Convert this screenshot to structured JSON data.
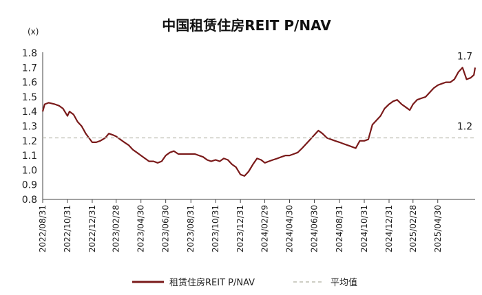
{
  "chart_data": {
    "type": "line",
    "title": "中国租赁住房REIT P/NAV",
    "unit_label": "(x)",
    "xlabel": "",
    "ylabel": "",
    "ylim": [
      0.8,
      1.8
    ],
    "yticks": [
      0.8,
      0.9,
      1.0,
      1.1,
      1.2,
      1.3,
      1.4,
      1.5,
      1.6,
      1.7,
      1.8
    ],
    "xlim": [
      "2022-08-31",
      "2025-07-31"
    ],
    "xtick_labels": [
      "2022/08/31",
      "2022/10/31",
      "2022/12/31",
      "2023/02/28",
      "2023/04/30",
      "2023/06/30",
      "2023/08/31",
      "2023/10/31",
      "2023/12/31",
      "2024/02/29",
      "2024/04/30",
      "2024/06/30",
      "2024/08/31",
      "2024/10/31",
      "2024/12/31",
      "2025/02/28",
      "2025/04/30"
    ],
    "grid": false,
    "legend_position": "bottom",
    "series": [
      {
        "name": "租赁住房REIT P/NAV",
        "style": "solid",
        "color": "#7a1a1a",
        "x": [
          "2022-08-31",
          "2022-09-05",
          "2022-09-15",
          "2022-09-30",
          "2022-10-10",
          "2022-10-20",
          "2022-10-31",
          "2022-11-05",
          "2022-11-15",
          "2022-11-25",
          "2022-12-05",
          "2022-12-15",
          "2022-12-31",
          "2023-01-10",
          "2023-01-20",
          "2023-02-01",
          "2023-02-10",
          "2023-02-20",
          "2023-02-28",
          "2023-03-10",
          "2023-03-20",
          "2023-03-31",
          "2023-04-10",
          "2023-04-20",
          "2023-04-30",
          "2023-05-10",
          "2023-05-20",
          "2023-05-31",
          "2023-06-10",
          "2023-06-20",
          "2023-06-30",
          "2023-07-10",
          "2023-07-20",
          "2023-07-31",
          "2023-08-10",
          "2023-08-20",
          "2023-08-31",
          "2023-09-10",
          "2023-09-20",
          "2023-09-30",
          "2023-10-10",
          "2023-10-20",
          "2023-10-31",
          "2023-11-10",
          "2023-11-20",
          "2023-11-30",
          "2023-12-10",
          "2023-12-20",
          "2023-12-31",
          "2024-01-10",
          "2024-01-20",
          "2024-01-31",
          "2024-02-10",
          "2024-02-20",
          "2024-02-29",
          "2024-03-10",
          "2024-03-20",
          "2024-03-31",
          "2024-04-10",
          "2024-04-20",
          "2024-04-30",
          "2024-05-10",
          "2024-05-20",
          "2024-05-31",
          "2024-06-10",
          "2024-06-20",
          "2024-06-30",
          "2024-07-10",
          "2024-07-20",
          "2024-07-31",
          "2024-08-10",
          "2024-08-20",
          "2024-08-31",
          "2024-09-10",
          "2024-09-20",
          "2024-09-30",
          "2024-10-10",
          "2024-10-20",
          "2024-10-31",
          "2024-11-10",
          "2024-11-20",
          "2024-11-30",
          "2024-12-10",
          "2024-12-20",
          "2024-12-31",
          "2025-01-10",
          "2025-01-20",
          "2025-01-31",
          "2025-02-10",
          "2025-02-20",
          "2025-02-28",
          "2025-03-10",
          "2025-03-20",
          "2025-03-31",
          "2025-04-10",
          "2025-04-20",
          "2025-04-30",
          "2025-05-10",
          "2025-05-20",
          "2025-05-31",
          "2025-06-10",
          "2025-06-20",
          "2025-06-30",
          "2025-07-10",
          "2025-07-20",
          "2025-07-28",
          "2025-07-31"
        ],
        "y": [
          1.4,
          1.45,
          1.46,
          1.45,
          1.44,
          1.42,
          1.37,
          1.4,
          1.38,
          1.33,
          1.3,
          1.25,
          1.19,
          1.19,
          1.2,
          1.22,
          1.25,
          1.24,
          1.23,
          1.21,
          1.19,
          1.17,
          1.14,
          1.12,
          1.1,
          1.08,
          1.06,
          1.06,
          1.05,
          1.06,
          1.1,
          1.12,
          1.13,
          1.11,
          1.11,
          1.11,
          1.11,
          1.11,
          1.1,
          1.09,
          1.07,
          1.06,
          1.07,
          1.06,
          1.08,
          1.07,
          1.04,
          1.02,
          0.97,
          0.96,
          0.99,
          1.04,
          1.08,
          1.07,
          1.05,
          1.06,
          1.07,
          1.08,
          1.09,
          1.1,
          1.1,
          1.11,
          1.12,
          1.15,
          1.18,
          1.21,
          1.24,
          1.27,
          1.25,
          1.22,
          1.21,
          1.2,
          1.19,
          1.18,
          1.17,
          1.16,
          1.15,
          1.2,
          1.2,
          1.21,
          1.31,
          1.34,
          1.37,
          1.42,
          1.45,
          1.47,
          1.48,
          1.45,
          1.43,
          1.41,
          1.45,
          1.48,
          1.49,
          1.5,
          1.53,
          1.56,
          1.58,
          1.59,
          1.6,
          1.6,
          1.62,
          1.67,
          1.7,
          1.62,
          1.63,
          1.65,
          1.7
        ]
      },
      {
        "name": "平均值",
        "style": "dashed",
        "color": "#bdbdb0",
        "x": [
          "2022-08-31",
          "2025-07-31"
        ],
        "y": [
          1.22,
          1.22
        ]
      }
    ],
    "annotations": [
      {
        "text": "1.7",
        "x": "2025-07-31",
        "y": 1.7
      },
      {
        "text": "1.2",
        "x": "2025-07-31",
        "y": 1.22
      }
    ]
  }
}
